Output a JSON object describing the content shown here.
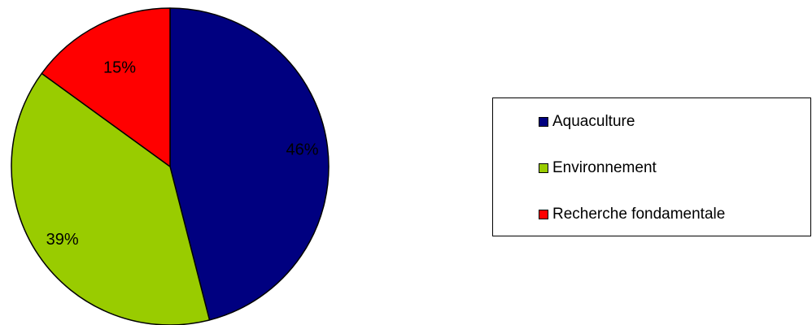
{
  "chart_data": {
    "type": "pie",
    "slices": [
      {
        "label": "Aquaculture",
        "value": 46,
        "display": "46%",
        "color": "#000080"
      },
      {
        "label": "Environnement",
        "value": 39,
        "display": "39%",
        "color": "#99CC00"
      },
      {
        "label": "Recherche fondamentale",
        "value": 15,
        "display": "15%",
        "color": "#FF0000"
      }
    ],
    "start": "12 o'clock",
    "direction": "clockwise",
    "legend_position": "right"
  }
}
